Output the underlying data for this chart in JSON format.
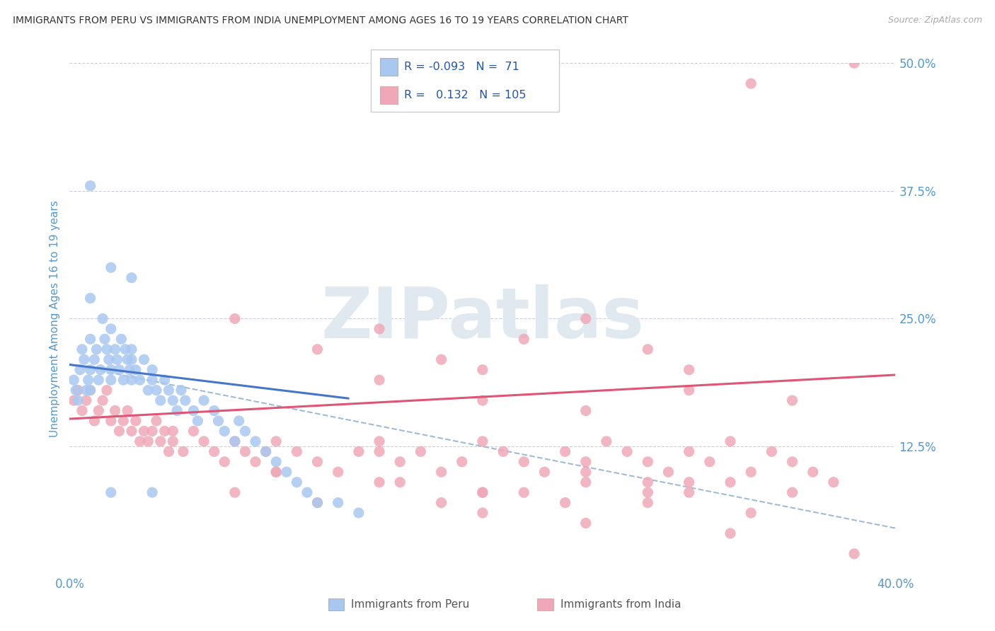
{
  "title": "IMMIGRANTS FROM PERU VS IMMIGRANTS FROM INDIA UNEMPLOYMENT AMONG AGES 16 TO 19 YEARS CORRELATION CHART",
  "source": "Source: ZipAtlas.com",
  "ylabel": "Unemployment Among Ages 16 to 19 years",
  "xlim": [
    0.0,
    0.4
  ],
  "ylim": [
    0.0,
    0.5
  ],
  "xtick_labels": [
    "0.0%",
    "40.0%"
  ],
  "ytick_labels": [
    "12.5%",
    "25.0%",
    "37.5%",
    "50.0%"
  ],
  "ytick_values": [
    0.125,
    0.25,
    0.375,
    0.5
  ],
  "xtick_values": [
    0.0,
    0.4
  ],
  "legend_R_peru": "-0.093",
  "legend_N_peru": "71",
  "legend_R_india": "0.132",
  "legend_N_india": "105",
  "peru_color": "#a8c8f0",
  "india_color": "#f0a8b8",
  "peru_line_color": "#4477cc",
  "india_line_color": "#e05575",
  "dashed_line_color": "#88aacc",
  "watermark_text": "ZIPatlas",
  "watermark_color": "#e0e8f0",
  "background_color": "#ffffff",
  "grid_color": "#ccccdd",
  "title_color": "#333333",
  "tick_label_color": "#5599cc",
  "ylabel_color": "#5599cc",
  "source_color": "#aaaaaa",
  "legend_text_color": "#2255aa",
  "bottom_legend_text_color": "#555555",
  "peru_line_x0": 0.0,
  "peru_line_x1": 0.135,
  "peru_line_y0": 0.205,
  "peru_line_y1": 0.172,
  "india_line_x0": 0.0,
  "india_line_x1": 0.4,
  "india_line_y0": 0.152,
  "india_line_y1": 0.195,
  "dash_line_x0": 0.0,
  "dash_line_x1": 0.4,
  "dash_line_y0": 0.205,
  "dash_line_y1": 0.045,
  "peru_scatter_x": [
    0.002,
    0.003,
    0.004,
    0.005,
    0.006,
    0.007,
    0.008,
    0.009,
    0.01,
    0.01,
    0.01,
    0.012,
    0.013,
    0.014,
    0.015,
    0.016,
    0.017,
    0.018,
    0.019,
    0.02,
    0.02,
    0.02,
    0.022,
    0.023,
    0.024,
    0.025,
    0.026,
    0.027,
    0.028,
    0.029,
    0.03,
    0.03,
    0.03,
    0.032,
    0.034,
    0.036,
    0.038,
    0.04,
    0.04,
    0.042,
    0.044,
    0.046,
    0.048,
    0.05,
    0.052,
    0.054,
    0.056,
    0.06,
    0.062,
    0.065,
    0.07,
    0.072,
    0.075,
    0.08,
    0.082,
    0.085,
    0.09,
    0.095,
    0.1,
    0.105,
    0.11,
    0.115,
    0.12,
    0.13,
    0.14,
    0.01,
    0.01,
    0.02,
    0.02,
    0.03,
    0.04
  ],
  "peru_scatter_y": [
    0.19,
    0.18,
    0.17,
    0.2,
    0.22,
    0.21,
    0.18,
    0.19,
    0.2,
    0.23,
    0.18,
    0.21,
    0.22,
    0.19,
    0.2,
    0.25,
    0.23,
    0.22,
    0.21,
    0.2,
    0.24,
    0.19,
    0.22,
    0.21,
    0.2,
    0.23,
    0.19,
    0.22,
    0.21,
    0.2,
    0.22,
    0.21,
    0.19,
    0.2,
    0.19,
    0.21,
    0.18,
    0.2,
    0.19,
    0.18,
    0.17,
    0.19,
    0.18,
    0.17,
    0.16,
    0.18,
    0.17,
    0.16,
    0.15,
    0.17,
    0.16,
    0.15,
    0.14,
    0.13,
    0.15,
    0.14,
    0.13,
    0.12,
    0.11,
    0.1,
    0.09,
    0.08,
    0.07,
    0.07,
    0.06,
    0.38,
    0.27,
    0.3,
    0.08,
    0.29,
    0.08
  ],
  "india_scatter_x": [
    0.002,
    0.004,
    0.006,
    0.008,
    0.01,
    0.012,
    0.014,
    0.016,
    0.018,
    0.02,
    0.022,
    0.024,
    0.026,
    0.028,
    0.03,
    0.032,
    0.034,
    0.036,
    0.038,
    0.04,
    0.042,
    0.044,
    0.046,
    0.048,
    0.05,
    0.055,
    0.06,
    0.065,
    0.07,
    0.075,
    0.08,
    0.085,
    0.09,
    0.095,
    0.1,
    0.11,
    0.12,
    0.13,
    0.14,
    0.15,
    0.16,
    0.17,
    0.18,
    0.19,
    0.2,
    0.21,
    0.22,
    0.23,
    0.24,
    0.25,
    0.26,
    0.27,
    0.28,
    0.29,
    0.3,
    0.31,
    0.32,
    0.33,
    0.34,
    0.35,
    0.36,
    0.37,
    0.08,
    0.12,
    0.15,
    0.18,
    0.2,
    0.22,
    0.25,
    0.28,
    0.3,
    0.05,
    0.1,
    0.15,
    0.2,
    0.25,
    0.18,
    0.22,
    0.28,
    0.1,
    0.15,
    0.2,
    0.25,
    0.3,
    0.35,
    0.08,
    0.12,
    0.16,
    0.2,
    0.24,
    0.28,
    0.32,
    0.15,
    0.2,
    0.25,
    0.3,
    0.35,
    0.38,
    0.33,
    0.38,
    0.33,
    0.3,
    0.25,
    0.32,
    0.28
  ],
  "india_scatter_y": [
    0.17,
    0.18,
    0.16,
    0.17,
    0.18,
    0.15,
    0.16,
    0.17,
    0.18,
    0.15,
    0.16,
    0.14,
    0.15,
    0.16,
    0.14,
    0.15,
    0.13,
    0.14,
    0.13,
    0.14,
    0.15,
    0.13,
    0.14,
    0.12,
    0.13,
    0.12,
    0.14,
    0.13,
    0.12,
    0.11,
    0.13,
    0.12,
    0.11,
    0.12,
    0.1,
    0.12,
    0.11,
    0.1,
    0.12,
    0.13,
    0.11,
    0.12,
    0.1,
    0.11,
    0.13,
    0.12,
    0.11,
    0.1,
    0.12,
    0.11,
    0.13,
    0.12,
    0.11,
    0.1,
    0.12,
    0.11,
    0.13,
    0.1,
    0.12,
    0.11,
    0.1,
    0.09,
    0.25,
    0.22,
    0.24,
    0.21,
    0.2,
    0.23,
    0.25,
    0.22,
    0.2,
    0.14,
    0.13,
    0.12,
    0.08,
    0.09,
    0.07,
    0.08,
    0.09,
    0.1,
    0.09,
    0.08,
    0.1,
    0.09,
    0.08,
    0.08,
    0.07,
    0.09,
    0.06,
    0.07,
    0.08,
    0.09,
    0.19,
    0.17,
    0.16,
    0.18,
    0.17,
    0.5,
    0.48,
    0.02,
    0.06,
    0.08,
    0.05,
    0.04,
    0.07
  ]
}
